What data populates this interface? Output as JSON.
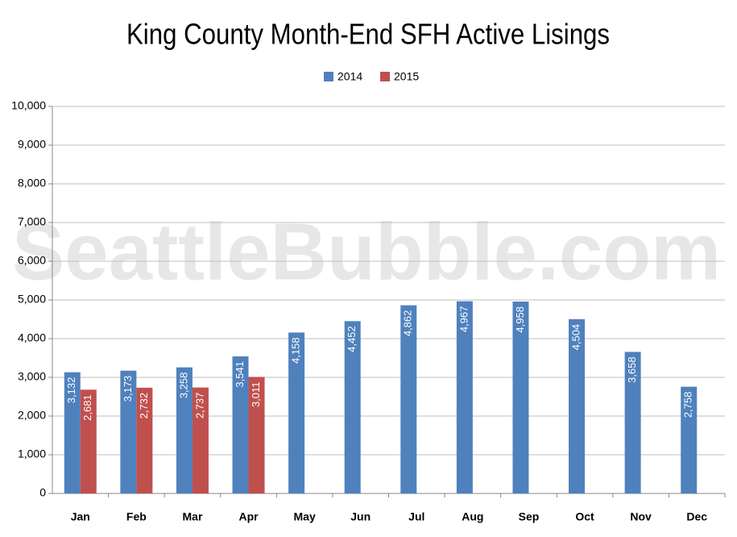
{
  "chart_data": {
    "type": "bar",
    "title": "King County Month-End SFH Active Lisings",
    "watermark": "SeattleBubble.com",
    "categories": [
      "Jan",
      "Feb",
      "Mar",
      "Apr",
      "May",
      "Jun",
      "Jul",
      "Aug",
      "Sep",
      "Oct",
      "Nov",
      "Dec"
    ],
    "series": [
      {
        "name": "2014",
        "color": "#4f81bd",
        "values": [
          3132,
          3173,
          3258,
          3541,
          4158,
          4452,
          4862,
          4967,
          4958,
          4504,
          3658,
          2758
        ],
        "value_labels": [
          "3,132",
          "3,173",
          "3,258",
          "3,541",
          "4,158",
          "4,452",
          "4,862",
          "4,967",
          "4,958",
          "4,504",
          "3,658",
          "2,758"
        ]
      },
      {
        "name": "2015",
        "color": "#c0504d",
        "values": [
          2681,
          2732,
          2737,
          3011,
          null,
          null,
          null,
          null,
          null,
          null,
          null,
          null
        ],
        "value_labels": [
          "2,681",
          "2,732",
          "2,737",
          "3,011",
          null,
          null,
          null,
          null,
          null,
          null,
          null,
          null
        ]
      }
    ],
    "ylim": [
      0,
      10000
    ],
    "yticks": [
      0,
      {
        "value": 1000,
        "label": "1,000"
      },
      {
        "value": 2000,
        "label": "2,000"
      },
      {
        "value": 3000,
        "label": "3,000"
      },
      {
        "value": 4000,
        "label": "4,000"
      },
      {
        "value": 5000,
        "label": "5,000"
      },
      {
        "value": 6000,
        "label": "6,000"
      },
      {
        "value": 7000,
        "label": "7,000"
      },
      {
        "value": 8000,
        "label": "8,000"
      },
      {
        "value": 9000,
        "label": "9,000"
      },
      {
        "value": 10000,
        "label": "10,000"
      }
    ],
    "grid": true,
    "legend": "top"
  }
}
